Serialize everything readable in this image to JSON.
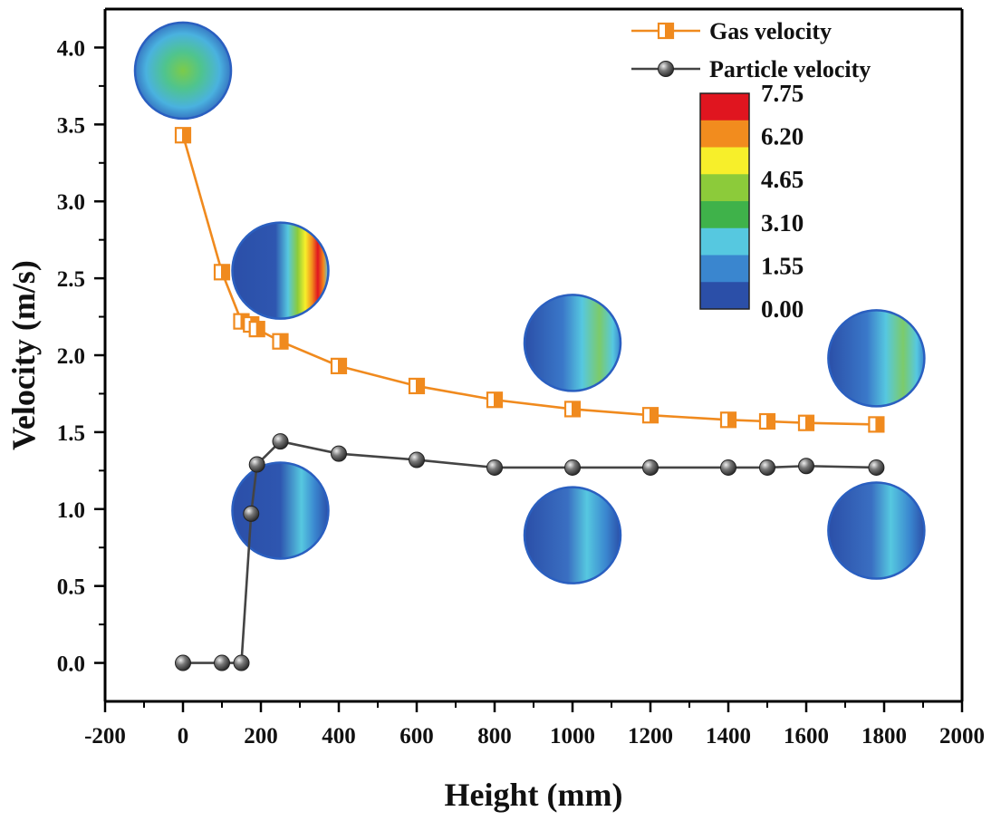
{
  "chart_data": {
    "type": "line",
    "title": "",
    "xlabel": "Height (mm)",
    "ylabel": "Velocity (m/s)",
    "xlim": [
      -200,
      2000
    ],
    "ylim": [
      -0.25,
      4.25
    ],
    "x_ticks": [
      -200,
      0,
      200,
      400,
      600,
      800,
      1000,
      1200,
      1400,
      1600,
      1800,
      2000
    ],
    "x_tick_labels": [
      "-200",
      "0",
      "200",
      "400",
      "600",
      "800",
      "1000",
      "1200",
      "1400",
      "1600",
      "1800",
      "2000"
    ],
    "y_ticks": [
      0.0,
      0.5,
      1.0,
      1.5,
      2.0,
      2.5,
      3.0,
      3.5,
      4.0
    ],
    "y_tick_labels": [
      "0.0",
      "0.5",
      "1.0",
      "1.5",
      "2.0",
      "2.5",
      "3.0",
      "3.5",
      "4.0"
    ],
    "grid": false,
    "legend_position": "top-right",
    "series": [
      {
        "name": "Gas velocity",
        "color": "#f08a1e",
        "marker": "half-filled-square",
        "x": [
          0,
          100,
          150,
          175,
          190,
          250,
          400,
          600,
          800,
          1000,
          1200,
          1400,
          1500,
          1600,
          1780
        ],
        "y": [
          3.43,
          2.54,
          2.22,
          2.2,
          2.17,
          2.09,
          1.93,
          1.8,
          1.71,
          1.65,
          1.61,
          1.58,
          1.57,
          1.56,
          1.55
        ]
      },
      {
        "name": "Particle velocity",
        "color": "#444444",
        "marker": "sphere",
        "x": [
          0,
          100,
          150,
          175,
          190,
          250,
          400,
          600,
          800,
          1000,
          1200,
          1400,
          1500,
          1600,
          1780
        ],
        "y": [
          0.0,
          0.0,
          0.0,
          0.97,
          1.29,
          1.44,
          1.36,
          1.32,
          1.27,
          1.27,
          1.27,
          1.27,
          1.27,
          1.28,
          1.27
        ]
      }
    ],
    "colorbar": {
      "tick_labels": [
        "7.75",
        "6.20",
        "4.65",
        "3.10",
        "1.55",
        "0.00"
      ],
      "band_colors": [
        "#e0151f",
        "#f28c1e",
        "#f7ef2a",
        "#8ccb3a",
        "#3fb24a",
        "#56c8e0",
        "#3a86cf",
        "#2b4fa8"
      ]
    },
    "contour_insets": [
      {
        "name": "inset-gas-0",
        "x": 0,
        "y": 3.85,
        "pattern": "center"
      },
      {
        "name": "inset-gas-250",
        "x": 250,
        "y": 2.55,
        "pattern": "crescent-hot"
      },
      {
        "name": "inset-gas-1000",
        "x": 1000,
        "y": 2.08,
        "pattern": "right-green"
      },
      {
        "name": "inset-gas-1780",
        "x": 1780,
        "y": 1.98,
        "pattern": "right-green"
      },
      {
        "name": "inset-particle-250",
        "x": 250,
        "y": 0.99,
        "pattern": "crescent-light"
      },
      {
        "name": "inset-particle-1000",
        "x": 1000,
        "y": 0.83,
        "pattern": "right-light"
      },
      {
        "name": "inset-particle-1780",
        "x": 1780,
        "y": 0.86,
        "pattern": "right-light"
      }
    ]
  }
}
